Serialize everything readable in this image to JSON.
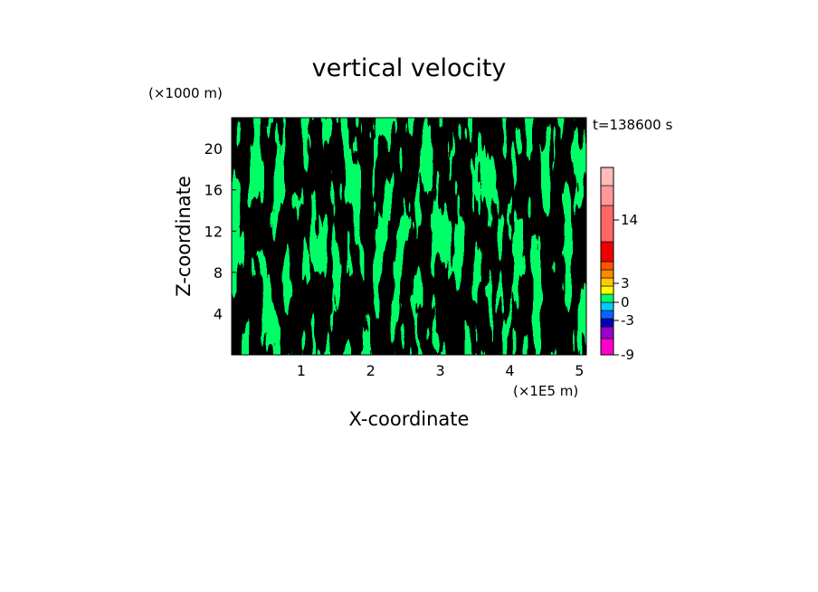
{
  "chart_data": {
    "type": "heatmap",
    "title": "vertical velocity",
    "xlabel": "X-coordinate",
    "ylabel": "Z-coordinate",
    "x_unit": "(×1E5 m)",
    "y_unit": "(×1000 m)",
    "time_label": "t=138600 s",
    "xlim": [
      0,
      5.1
    ],
    "ylim": [
      0,
      23
    ],
    "x_ticks": [
      1,
      2,
      3,
      4,
      5
    ],
    "y_ticks": [
      4,
      8,
      12,
      16,
      20
    ],
    "grid": false,
    "field_colors": {
      "slightly_negative": "#00ff66",
      "slightly_positive": "#ffff00"
    },
    "colorbar": {
      "placement": "right",
      "labels": [
        "14",
        "3",
        "0",
        "-3",
        "-9"
      ],
      "levels": [
        {
          "color": "#ff00cc"
        },
        {
          "color": "#9900cc"
        },
        {
          "color": "#0000bb"
        },
        {
          "color": "#0066ff"
        },
        {
          "color": "#00ccff"
        },
        {
          "color": "#00ff66"
        },
        {
          "color": "#ffff00"
        },
        {
          "color": "#ffcc00"
        },
        {
          "color": "#ff8800"
        },
        {
          "color": "#ff5500"
        },
        {
          "color": "#ee0000"
        },
        {
          "color": "#ff6666"
        },
        {
          "color": "#ff9999"
        },
        {
          "color": "#ffbbbb"
        }
      ]
    }
  }
}
